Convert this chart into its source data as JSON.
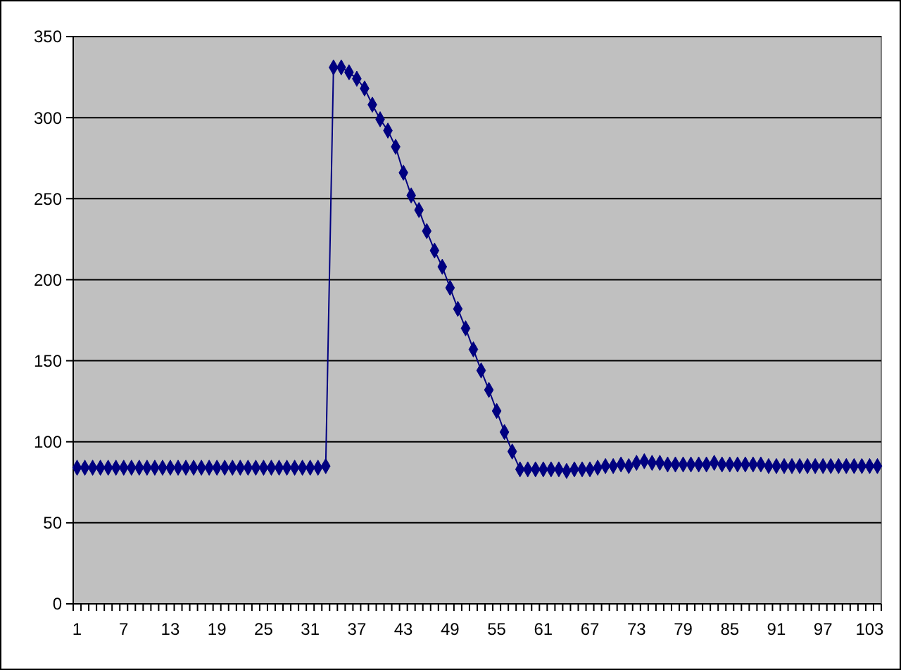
{
  "chart_data": {
    "type": "line",
    "categories": [
      "1",
      null,
      null,
      null,
      null,
      null,
      "7",
      null,
      null,
      null,
      null,
      null,
      "13",
      null,
      null,
      null,
      null,
      null,
      "19",
      null,
      null,
      null,
      null,
      null,
      "25",
      null,
      null,
      null,
      null,
      null,
      "31",
      null,
      null,
      null,
      null,
      null,
      "37",
      null,
      null,
      null,
      null,
      null,
      "43",
      null,
      null,
      null,
      null,
      null,
      "49",
      null,
      null,
      null,
      null,
      null,
      "55",
      null,
      null,
      null,
      null,
      null,
      "61",
      null,
      null,
      null,
      null,
      null,
      "67",
      null,
      null,
      null,
      null,
      null,
      "73",
      null,
      null,
      null,
      null,
      null,
      "79",
      null,
      null,
      null,
      null,
      null,
      "85",
      null,
      null,
      null,
      null,
      null,
      "91",
      null,
      null,
      null,
      null,
      null,
      "97",
      null,
      null,
      null,
      null,
      null,
      "103",
      null
    ],
    "series": [
      {
        "color": "#000080",
        "values": [
          84,
          84,
          84,
          84,
          84,
          84,
          84,
          84,
          84,
          84,
          84,
          84,
          84,
          84,
          84,
          84,
          84,
          84,
          84,
          84,
          84,
          84,
          84,
          84,
          84,
          84,
          84,
          84,
          84,
          84,
          84,
          84,
          85,
          331,
          331,
          328,
          324,
          318,
          308,
          299,
          292,
          282,
          266,
          252,
          243,
          230,
          218,
          208,
          195,
          182,
          170,
          157,
          144,
          132,
          119,
          106,
          94,
          83,
          83,
          83,
          83,
          83,
          83,
          82,
          83,
          83,
          83,
          84,
          85,
          85,
          86,
          85,
          87,
          88,
          87,
          87,
          86,
          86,
          86,
          86,
          86,
          86,
          87,
          86,
          86,
          86,
          86,
          86,
          86,
          85,
          85,
          85,
          85,
          85,
          85,
          85,
          85,
          85,
          85,
          85,
          85,
          85,
          85,
          85
        ]
      }
    ],
    "ylim": [
      0,
      350
    ],
    "yticks": [
      0,
      50,
      100,
      150,
      200,
      250,
      300,
      350
    ],
    "grid": "y",
    "marker": "diamond",
    "line_style": "solid"
  }
}
